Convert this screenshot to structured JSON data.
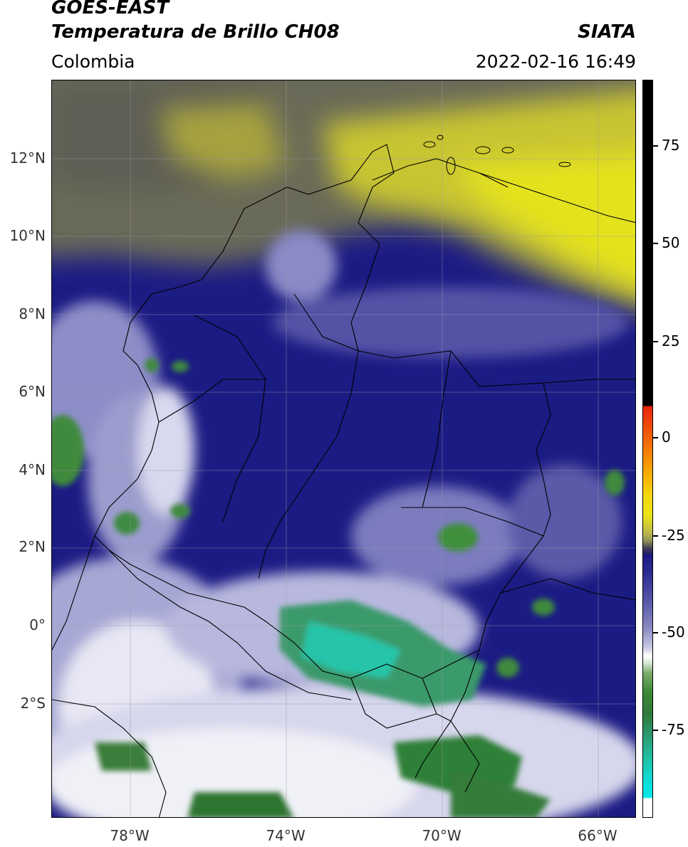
{
  "header": {
    "satellite": "GOES-EAST",
    "product": "Temperatura de Brillo CH08",
    "region": "Colombia",
    "agency": "SIATA",
    "datetime": "2022-02-16 16:49"
  },
  "map": {
    "lat_ticks": [
      "12°N",
      "10°N",
      "8°N",
      "6°N",
      "4°N",
      "2°N",
      "0°",
      "2°S"
    ],
    "lon_ticks": [
      "78°W",
      "74°W",
      "70°W",
      "66°W"
    ],
    "lat_values": [
      12,
      10,
      8,
      6,
      4,
      2,
      0,
      -2
    ],
    "lon_values": [
      -78,
      -74,
      -70,
      -66
    ],
    "lat_range": [
      -4.9,
      14.0
    ],
    "lon_range": [
      -80.0,
      -65.0
    ],
    "gridlines": true
  },
  "colorbar": {
    "ticks": [
      "75",
      "50",
      "25",
      "0",
      "-25",
      "-50",
      "-75"
    ],
    "tick_values": [
      75,
      50,
      25,
      0,
      -25,
      -50,
      -75
    ],
    "range": [
      -95,
      90
    ],
    "colors": {
      "warm_black": "#000000",
      "red": "#e8230e",
      "orange": "#f8a000",
      "yellow": "#ece419",
      "gray_olive": "#8f8f55",
      "navy": "#1a1a86",
      "lavender": "#8c8cc4",
      "white": "#ffffff",
      "green": "#3d8a35",
      "teal": "#20c0a5",
      "cyan": "#00e8e8"
    }
  }
}
